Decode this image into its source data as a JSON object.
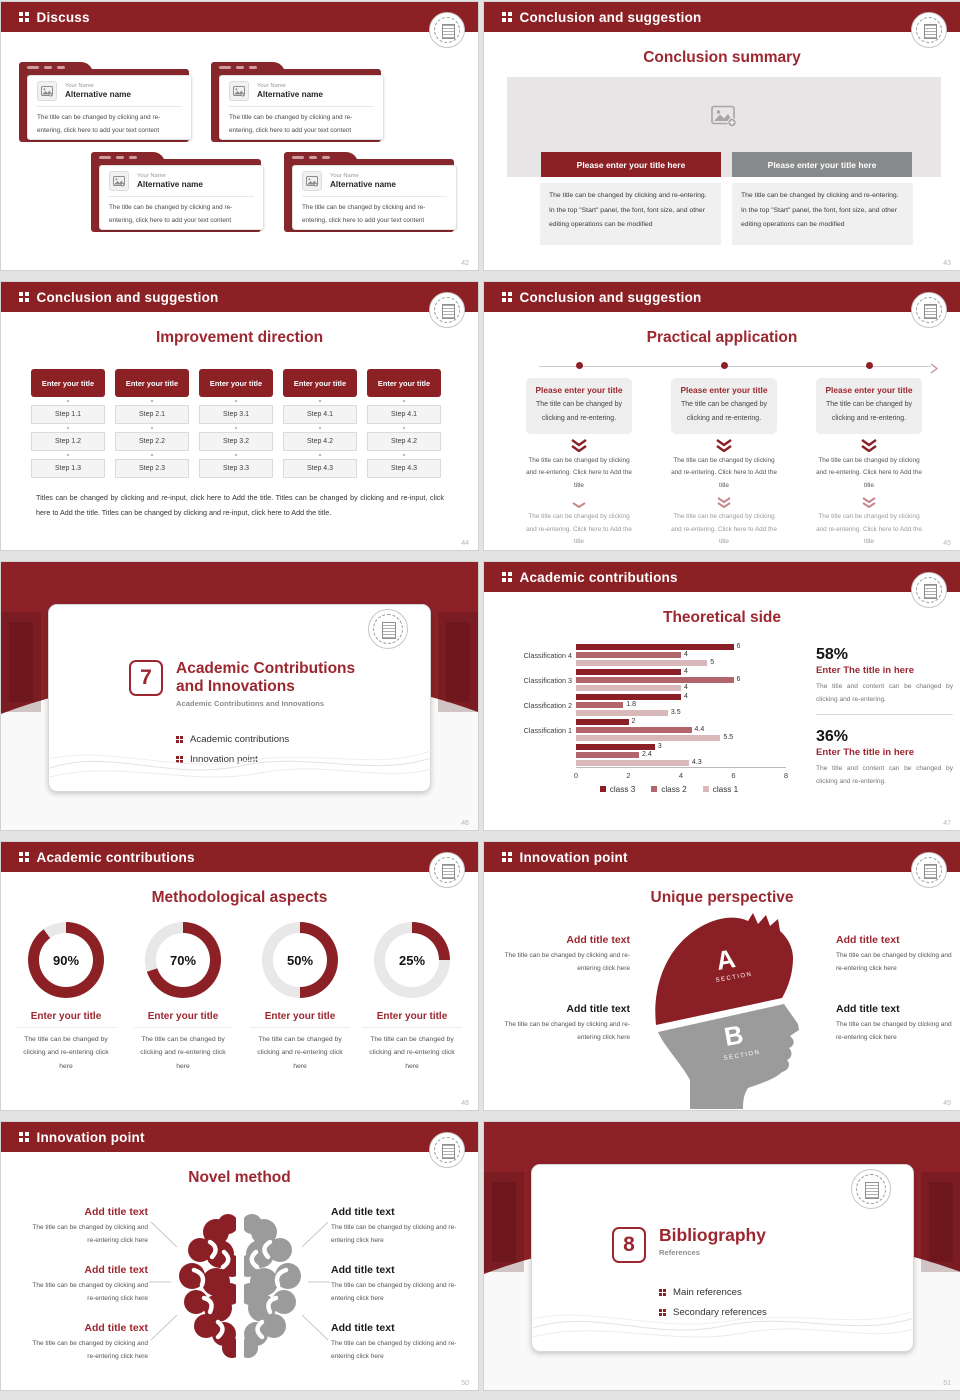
{
  "colors": {
    "accent": "#8B2025",
    "title_red": "#9C2730",
    "bar_gray": "#87898B",
    "silhouette_gray": "#9B9B9B",
    "chart_class3": "#8B1F26",
    "chart_class2": "#B2656B",
    "chart_class1": "#D9B8BA"
  },
  "slides": [
    {
      "header": "Discuss",
      "page": "42",
      "card": {
        "name": "Your Name",
        "alt": "Alternative name",
        "body": "The title can be changed by clicking and re-entering, click here to add your text content"
      }
    },
    {
      "header": "Conclusion and suggestion",
      "title": "Conclusion summary",
      "page": "43",
      "bar_red": "Please enter your title here",
      "bar_gray": "Please enter your title here",
      "body": "The title can be changed by clicking and re-entering. In the top \"Start\" panel, the font, font size, and other editing operations can be modified"
    },
    {
      "header": "Conclusion and suggestion",
      "title": "Improvement direction",
      "page": "44",
      "button": "Enter your title",
      "columns": [
        [
          "Step 1.1",
          "Step 1.2",
          "Step 1.3"
        ],
        [
          "Step 2.1",
          "Step 2.2",
          "Step 2.3"
        ],
        [
          "Step 3.1",
          "Step 3.2",
          "Step 3.3"
        ],
        [
          "Step 4.1",
          "Step 4.2",
          "Step 4.3"
        ],
        [
          "Step 4.1",
          "Step 4.2",
          "Step 4.3"
        ]
      ],
      "footer": "Titles can be changed by clicking and re-input, click here to Add the title. Titles can be changed by clicking and re-input, click here to Add the title. Titles can be changed by clicking and re-input, click here to Add the title."
    },
    {
      "header": "Conclusion and suggestion",
      "title": "Practical application",
      "page": "45",
      "item": {
        "title": "Please enter your title",
        "body": "The title can be changed by clicking and re-entering.",
        "step2": "The title can be changed by clicking and re-entering. Click here to Add the title",
        "step3": "The title can be changed by clicking and re-entering. Click here to Add the title"
      }
    },
    {
      "page": "46",
      "number": "7",
      "title_line1": "Academic Contributions",
      "title_line2": "and Innovations",
      "subtitle": "Academic Contributions and Innovations",
      "bullets": [
        "Academic contributions",
        "Innovation point"
      ]
    },
    {
      "header": "Academic contributions",
      "title": "Theoretical side",
      "page": "47",
      "chart_data": {
        "type": "bar",
        "orientation": "horizontal",
        "title": "Theoretical side",
        "categories": [
          "Classification 4",
          "Classification 3",
          "Classification 2",
          "Classification 1",
          ""
        ],
        "series": [
          {
            "name": "class 3",
            "color": "#8B1F26",
            "values": [
              6,
              4,
              4,
              2,
              3
            ]
          },
          {
            "name": "class 2",
            "color": "#B2656B",
            "values": [
              4,
              6,
              1.8,
              4.4,
              2.4
            ]
          },
          {
            "name": "class 1",
            "color": "#D9B8BA",
            "values": [
              5,
              4,
              3.5,
              5.5,
              4.3
            ]
          }
        ],
        "xlim": [
          0,
          8
        ],
        "xticks": [
          0,
          2,
          4,
          6,
          8
        ],
        "legend_position": "bottom",
        "grid": false
      },
      "stats": [
        {
          "pct": "58%",
          "title": "Enter The title in here",
          "body": "The title and content can be changed by clicking and re-entering."
        },
        {
          "pct": "36%",
          "title": "Enter The title in here",
          "body": "The title and content can be changed by clicking and re-entering."
        }
      ]
    },
    {
      "header": "Academic contributions",
      "title": "Methodological aspects",
      "page": "48",
      "donut_title": "Enter your title",
      "donut_body": "The title can be changed by clicking and re-entering click here",
      "donuts": [
        {
          "pct": 90,
          "label": "90%"
        },
        {
          "pct": 70,
          "label": "70%"
        },
        {
          "pct": 50,
          "label": "50%"
        },
        {
          "pct": 25,
          "label": "25%"
        }
      ]
    },
    {
      "header": "Innovation point",
      "title": "Unique perspective",
      "page": "49",
      "block_title": "Add title text",
      "block_body": "The title can be changed by clicking and re-entering click here",
      "section_a": "A",
      "section_b": "B",
      "section_label": "SECTION"
    },
    {
      "header": "Innovation point",
      "title": "Novel method",
      "page": "50",
      "block_title": "Add title text",
      "block_body": "The title can be changed by clicking and re-entering click here"
    },
    {
      "page": "51",
      "number": "8",
      "title": "Bibliography",
      "subtitle": "References",
      "bullets": [
        "Main references",
        "Secondary references"
      ]
    }
  ]
}
